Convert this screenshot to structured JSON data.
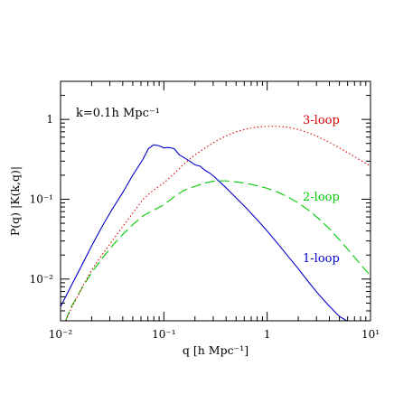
{
  "chart_data": {
    "type": "line",
    "title": "",
    "annotation": "k=0.1h Mpc⁻¹",
    "xlabel": "q [h Mpc⁻¹]",
    "ylabel": "P(q) |K(k,q)|",
    "xscale": "log",
    "yscale": "log",
    "xlim": [
      0.01,
      10
    ],
    "ylim": [
      0.003,
      3
    ],
    "x_ticks": [
      {
        "value": 0.01,
        "label": "10⁻²"
      },
      {
        "value": 0.1,
        "label": "10⁻¹"
      },
      {
        "value": 1,
        "label": "1"
      },
      {
        "value": 10,
        "label": "10¹"
      }
    ],
    "y_ticks": [
      {
        "value": 0.01,
        "label": "10⁻²"
      },
      {
        "value": 0.1,
        "label": "10⁻¹"
      },
      {
        "value": 1,
        "label": "1"
      }
    ],
    "grid": false,
    "legend": "labels placed next to curves on the right side",
    "series": [
      {
        "name": "1-loop",
        "color": "#0000cc",
        "style": "solid",
        "x": [
          0.01,
          0.0126,
          0.0159,
          0.02,
          0.0251,
          0.0316,
          0.0398,
          0.05,
          0.063,
          0.0708,
          0.0794,
          0.0891,
          0.1,
          0.112,
          0.126,
          0.141,
          0.158,
          0.178,
          0.2,
          0.224,
          0.251,
          0.282,
          0.316,
          0.398,
          0.501,
          0.631,
          0.794,
          1.0,
          1.26,
          1.58,
          2.0,
          2.51,
          3.16,
          3.98,
          5.01,
          5.9
        ],
        "y": [
          0.0045,
          0.0081,
          0.0145,
          0.026,
          0.045,
          0.075,
          0.12,
          0.2,
          0.32,
          0.43,
          0.48,
          0.47,
          0.44,
          0.445,
          0.43,
          0.36,
          0.33,
          0.3,
          0.27,
          0.26,
          0.23,
          0.21,
          0.185,
          0.14,
          0.104,
          0.077,
          0.056,
          0.04,
          0.028,
          0.0195,
          0.0135,
          0.0092,
          0.0064,
          0.0046,
          0.0034,
          0.003
        ]
      },
      {
        "name": "2-loop",
        "color": "#00cc00",
        "style": "dashed",
        "x": [
          0.0112,
          0.0126,
          0.0159,
          0.02,
          0.0251,
          0.0316,
          0.0398,
          0.05,
          0.063,
          0.0794,
          0.1,
          0.126,
          0.158,
          0.2,
          0.251,
          0.316,
          0.398,
          0.501,
          0.631,
          0.794,
          1.0,
          1.26,
          1.58,
          2.0,
          2.51,
          3.16,
          3.98,
          5.01,
          6.31,
          7.94,
          10
        ],
        "y": [
          0.003,
          0.0044,
          0.0075,
          0.012,
          0.018,
          0.026,
          0.036,
          0.048,
          0.062,
          0.073,
          0.085,
          0.108,
          0.13,
          0.145,
          0.16,
          0.17,
          0.17,
          0.165,
          0.158,
          0.148,
          0.137,
          0.123,
          0.107,
          0.09,
          0.073,
          0.057,
          0.043,
          0.031,
          0.022,
          0.0155,
          0.011
        ]
      },
      {
        "name": "3-loop",
        "color": "#dd0000",
        "style": "dotted",
        "x": [
          0.0112,
          0.0126,
          0.0159,
          0.02,
          0.0251,
          0.0316,
          0.0398,
          0.05,
          0.063,
          0.0794,
          0.1,
          0.126,
          0.158,
          0.2,
          0.251,
          0.316,
          0.398,
          0.501,
          0.631,
          0.794,
          1.0,
          1.26,
          1.58,
          2.0,
          2.51,
          3.16,
          3.98,
          5.01,
          6.31,
          7.94,
          10
        ],
        "y": [
          0.003,
          0.0042,
          0.0075,
          0.013,
          0.02,
          0.03,
          0.045,
          0.067,
          0.1,
          0.13,
          0.16,
          0.21,
          0.28,
          0.36,
          0.44,
          0.53,
          0.62,
          0.7,
          0.76,
          0.8,
          0.82,
          0.82,
          0.8,
          0.75,
          0.68,
          0.6,
          0.52,
          0.44,
          0.37,
          0.31,
          0.26
        ]
      }
    ]
  }
}
